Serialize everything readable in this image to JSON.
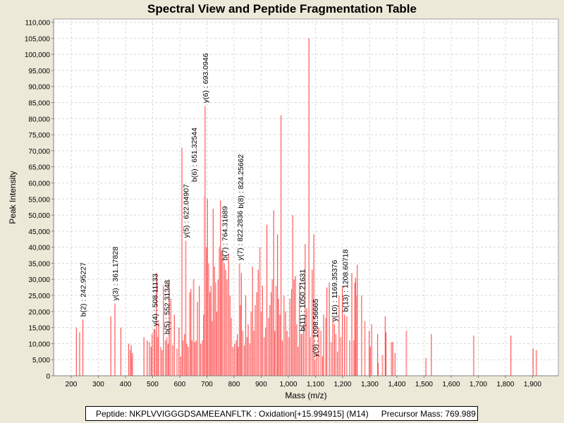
{
  "chart_data": {
    "type": "bar",
    "title": "Spectral View and Peptide Fragmentation Table",
    "xlabel": "Mass (m/z)",
    "ylabel": "Peak Intensity",
    "xlim": [
      135,
      1995
    ],
    "ylim": [
      0,
      111000
    ],
    "x_ticks": [
      200,
      300,
      400,
      500,
      600,
      700,
      800,
      900,
      1000,
      1100,
      1200,
      1300,
      1400,
      1500,
      1600,
      1700,
      1800,
      1900
    ],
    "x_tick_labels": [
      "200",
      "300",
      "400",
      "500",
      "600",
      "700",
      "800",
      "900",
      "1,000",
      "1,100",
      "1,200",
      "1,300",
      "1,400",
      "1,500",
      "1,600",
      "1,700",
      "1,800",
      "1,900"
    ],
    "y_ticks": [
      0,
      5000,
      10000,
      15000,
      20000,
      25000,
      30000,
      35000,
      40000,
      45000,
      50000,
      55000,
      60000,
      65000,
      70000,
      75000,
      80000,
      85000,
      90000,
      95000,
      100000,
      105000,
      110000
    ],
    "y_tick_labels": [
      "0",
      "5,000",
      "10,000",
      "15,000",
      "20,000",
      "25,000",
      "30,000",
      "35,000",
      "40,000",
      "45,000",
      "50,000",
      "55,000",
      "60,000",
      "65,000",
      "70,000",
      "75,000",
      "80,000",
      "85,000",
      "90,000",
      "95,000",
      "100,000",
      "105,000",
      "110,000"
    ],
    "grid": true,
    "series_color": "#ff5555",
    "peaks": [
      [
        219,
        15000
      ],
      [
        231,
        13500
      ],
      [
        243,
        17500
      ],
      [
        346,
        18500
      ],
      [
        361,
        22500
      ],
      [
        383,
        15000
      ],
      [
        412,
        10000
      ],
      [
        418,
        8000
      ],
      [
        421,
        9500
      ],
      [
        424,
        6000
      ],
      [
        426,
        7000
      ],
      [
        468,
        12000
      ],
      [
        480,
        11000
      ],
      [
        488,
        10500
      ],
      [
        494,
        9000
      ],
      [
        498,
        13000
      ],
      [
        505,
        14500
      ],
      [
        508,
        14500
      ],
      [
        514,
        32000
      ],
      [
        518,
        12000
      ],
      [
        522,
        16500
      ],
      [
        530,
        9000
      ],
      [
        535,
        8000
      ],
      [
        540,
        28000
      ],
      [
        548,
        11000
      ],
      [
        552,
        12000
      ],
      [
        557,
        10000
      ],
      [
        561,
        30000
      ],
      [
        567,
        24000
      ],
      [
        574,
        9500
      ],
      [
        580,
        19000
      ],
      [
        590,
        8500
      ],
      [
        597,
        15000
      ],
      [
        603,
        6000
      ],
      [
        608,
        71000
      ],
      [
        612,
        11000
      ],
      [
        618,
        13000
      ],
      [
        622,
        42000
      ],
      [
        626,
        10000
      ],
      [
        631,
        9000
      ],
      [
        637,
        26000
      ],
      [
        641,
        27000
      ],
      [
        645,
        11000
      ],
      [
        651,
        30000
      ],
      [
        655,
        10500
      ],
      [
        660,
        11000
      ],
      [
        665,
        23000
      ],
      [
        672,
        28000
      ],
      [
        677,
        10000
      ],
      [
        683,
        11000
      ],
      [
        688,
        19000
      ],
      [
        691,
        56000
      ],
      [
        693,
        84000
      ],
      [
        698,
        40000
      ],
      [
        702,
        55000
      ],
      [
        706,
        35000
      ],
      [
        711,
        26000
      ],
      [
        715,
        28000
      ],
      [
        719,
        17000
      ],
      [
        723,
        52000
      ],
      [
        728,
        34000
      ],
      [
        732,
        29000
      ],
      [
        736,
        20000
      ],
      [
        741,
        30000
      ],
      [
        746,
        40000
      ],
      [
        750,
        54500
      ],
      [
        754,
        39000
      ],
      [
        758,
        38000
      ],
      [
        764,
        35000
      ],
      [
        769,
        33000
      ],
      [
        774,
        30000
      ],
      [
        780,
        38000
      ],
      [
        785,
        25000
      ],
      [
        790,
        18000
      ],
      [
        796,
        9000
      ],
      [
        802,
        10000
      ],
      [
        808,
        11000
      ],
      [
        812,
        13000
      ],
      [
        816,
        9000
      ],
      [
        820,
        35000
      ],
      [
        823,
        22000
      ],
      [
        827,
        32000
      ],
      [
        832,
        14000
      ],
      [
        838,
        9500
      ],
      [
        843,
        25000
      ],
      [
        848,
        12000
      ],
      [
        852,
        16000
      ],
      [
        858,
        10000
      ],
      [
        863,
        20000
      ],
      [
        868,
        34000
      ],
      [
        873,
        14000
      ],
      [
        878,
        22000
      ],
      [
        884,
        26000
      ],
      [
        889,
        33000
      ],
      [
        895,
        40000
      ],
      [
        900,
        20000
      ],
      [
        905,
        28000
      ],
      [
        911,
        12000
      ],
      [
        916,
        15000
      ],
      [
        921,
        47000
      ],
      [
        927,
        18000
      ],
      [
        932,
        22000
      ],
      [
        937,
        26000
      ],
      [
        941,
        30000
      ],
      [
        946,
        51500
      ],
      [
        950,
        14000
      ],
      [
        955,
        28000
      ],
      [
        960,
        44000
      ],
      [
        964,
        24000
      ],
      [
        969,
        19000
      ],
      [
        973,
        81000
      ],
      [
        978,
        11000
      ],
      [
        984,
        25000
      ],
      [
        990,
        20000
      ],
      [
        995,
        14000
      ],
      [
        1001,
        12000
      ],
      [
        1006,
        24000
      ],
      [
        1012,
        27000
      ],
      [
        1016,
        50000
      ],
      [
        1021,
        30000
      ],
      [
        1026,
        31000
      ],
      [
        1031,
        16000
      ],
      [
        1036,
        9000
      ],
      [
        1041,
        29000
      ],
      [
        1047,
        13000
      ],
      [
        1050,
        13000
      ],
      [
        1056,
        16000
      ],
      [
        1062,
        41000
      ],
      [
        1068,
        21000
      ],
      [
        1076,
        105000
      ],
      [
        1081,
        12000
      ],
      [
        1088,
        33000
      ],
      [
        1094,
        44000
      ],
      [
        1098,
        5000
      ],
      [
        1105,
        7000
      ],
      [
        1112,
        15000
      ],
      [
        1120,
        14000
      ],
      [
        1126,
        6000
      ],
      [
        1130,
        19000
      ],
      [
        1138,
        18000
      ],
      [
        1142,
        27500
      ],
      [
        1151,
        29000
      ],
      [
        1158,
        10500
      ],
      [
        1164,
        18000
      ],
      [
        1170,
        16000
      ],
      [
        1175,
        13000
      ],
      [
        1181,
        7500
      ],
      [
        1187,
        25000
      ],
      [
        1193,
        12000
      ],
      [
        1199,
        28000
      ],
      [
        1207,
        19000
      ],
      [
        1215,
        18500
      ],
      [
        1226,
        11000
      ],
      [
        1234,
        32000
      ],
      [
        1241,
        11000
      ],
      [
        1245,
        29000
      ],
      [
        1248,
        30500
      ],
      [
        1251,
        25000
      ],
      [
        1254,
        34500
      ],
      [
        1270,
        25000
      ],
      [
        1282,
        17000
      ],
      [
        1298,
        14000
      ],
      [
        1302,
        9000
      ],
      [
        1307,
        16000
      ],
      [
        1329,
        13000
      ],
      [
        1331,
        4000
      ],
      [
        1347,
        6500
      ],
      [
        1357,
        18500
      ],
      [
        1360,
        13500
      ],
      [
        1380,
        10500
      ],
      [
        1385,
        10500
      ],
      [
        1393,
        7000
      ],
      [
        1435,
        14000
      ],
      [
        1507,
        5500
      ],
      [
        1527,
        13000
      ],
      [
        1683,
        12500
      ],
      [
        1820,
        12500
      ],
      [
        1902,
        8500
      ],
      [
        1914,
        8000
      ]
    ],
    "annotations": [
      {
        "label": "b(2) : 242.95227",
        "mass": 242.95227,
        "intensity": 17500
      },
      {
        "label": "y(3) : 361.17828",
        "mass": 361.17828,
        "intensity": 22500
      },
      {
        "label": "y(4) : 508.11133",
        "mass": 508.11133,
        "intensity": 14500
      },
      {
        "label": "b(5) : 552.31348",
        "mass": 552.31348,
        "intensity": 12000
      },
      {
        "label": "y(5) : 622.04907",
        "mass": 622.04907,
        "intensity": 42000
      },
      {
        "label": "b(6) : 651.32544",
        "mass": 651.32544,
        "intensity": 30000
      },
      {
        "label": "y(6) : 693.0946",
        "mass": 693.0946,
        "intensity": 84000
      },
      {
        "label": "b(7) : 764.31689",
        "mass": 764.31689,
        "intensity": 35000
      },
      {
        "label": "y(7) : 822.2836",
        "mass": 820.8,
        "intensity": 35000
      },
      {
        "label": "b(8) : 824.25662",
        "mass": 823.5,
        "intensity": 35000
      },
      {
        "label": "b(11) : 1050.21631",
        "mass": 1050.21631,
        "intensity": 13000
      },
      {
        "label": "y(9) : 1098.56665",
        "mass": 1098.56665,
        "intensity": 5000
      },
      {
        "label": "y(10) : 1169.35376",
        "mass": 1169.35376,
        "intensity": 16000
      },
      {
        "label": "b(13) : 1208.60718",
        "mass": 1208.60718,
        "intensity": 19000
      }
    ]
  },
  "footer": {
    "peptide_text": "Peptide: NKPLVVIGGGDSAMEEANFLTK : Oxidation[+15.994915] (M14)",
    "precursor_text": "Precursor Mass: 769.989"
  }
}
